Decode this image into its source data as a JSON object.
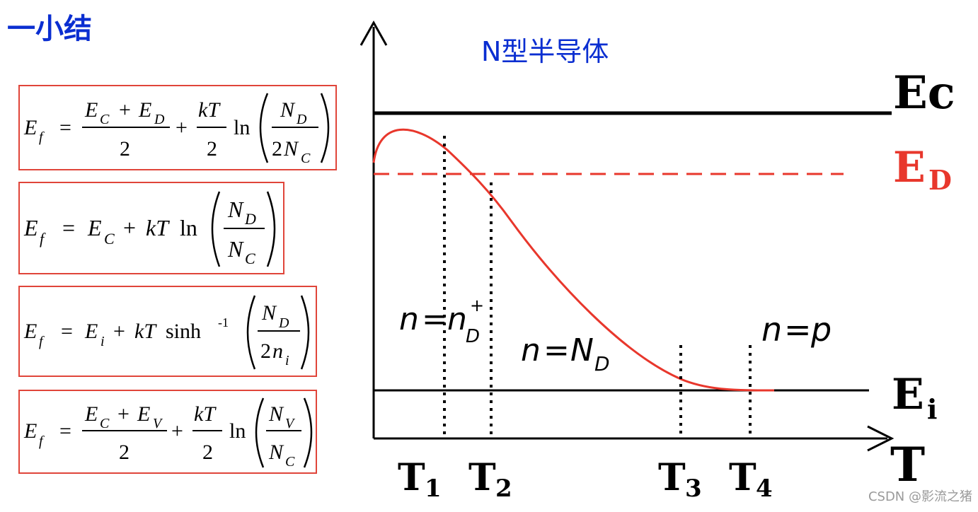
{
  "heading": "一小结",
  "formulas": {
    "f1": {
      "lhs_main": "E",
      "lhs_sub": "f",
      "eq": "=",
      "num1_a": "E",
      "num1_a_sub": "C",
      "plus1": "+",
      "num1_b": "E",
      "num1_b_sub": "D",
      "den1": "2",
      "plus2": "+",
      "num2": "kT",
      "den2": "2",
      "ln": "ln",
      "frac3_num": "N",
      "frac3_num_sub": "D",
      "frac3_den_pre": "2",
      "frac3_den": "N",
      "frac3_den_sub": "C"
    },
    "f2": {
      "lhs_main": "E",
      "lhs_sub": "f",
      "eq": "=",
      "t1": "E",
      "t1_sub": "C",
      "plus": "+",
      "kt": "kT",
      "ln": "ln",
      "num": "N",
      "num_sub": "D",
      "den": "N",
      "den_sub": "C"
    },
    "f3": {
      "lhs_main": "E",
      "lhs_sub": "f",
      "eq": "=",
      "t1": "E",
      "t1_sub": "i",
      "plus": "+",
      "kt": "kT",
      "fn": "sinh",
      "fn_sup": "-1",
      "num": "N",
      "num_sub": "D",
      "den_pre": "2",
      "den": "n",
      "den_sub": "i"
    },
    "f4": {
      "lhs_main": "E",
      "lhs_sub": "f",
      "eq": "=",
      "num1_a": "E",
      "num1_a_sub": "C",
      "plus1": "+",
      "num1_b": "E",
      "num1_b_sub": "V",
      "den1": "2",
      "plus2": "+",
      "num2": "kT",
      "den2": "2",
      "ln": "ln",
      "frac3_num": "N",
      "frac3_num_sub": "V",
      "frac3_den": "N",
      "frac3_den_sub": "C"
    }
  },
  "diagram": {
    "title": "N型半导体",
    "levels": {
      "ec": {
        "main": "Ec"
      },
      "ed": {
        "main": "E",
        "sub": "D"
      },
      "ei": {
        "main": "E",
        "sub": "i"
      }
    },
    "axis_label": "T",
    "temps": [
      {
        "main": "T",
        "sub": "1"
      },
      {
        "main": "T",
        "sub": "2"
      },
      {
        "main": "T",
        "sub": "3"
      },
      {
        "main": "T",
        "sub": "4"
      }
    ],
    "regions": {
      "r1": {
        "n": "n",
        "eq": "=",
        "rhs": "n",
        "rhs_sub": "D",
        "rhs_sup": "+"
      },
      "r2": {
        "n": "n",
        "eq": "=",
        "rhs": "N",
        "rhs_sub": "D"
      },
      "r3": {
        "n": "n",
        "eq": "=",
        "rhs": "p"
      }
    },
    "colors": {
      "black": "#000000",
      "red": "#e8372c",
      "blue": "#0a2ed1"
    }
  },
  "watermark": "CSDN @影流之猪"
}
